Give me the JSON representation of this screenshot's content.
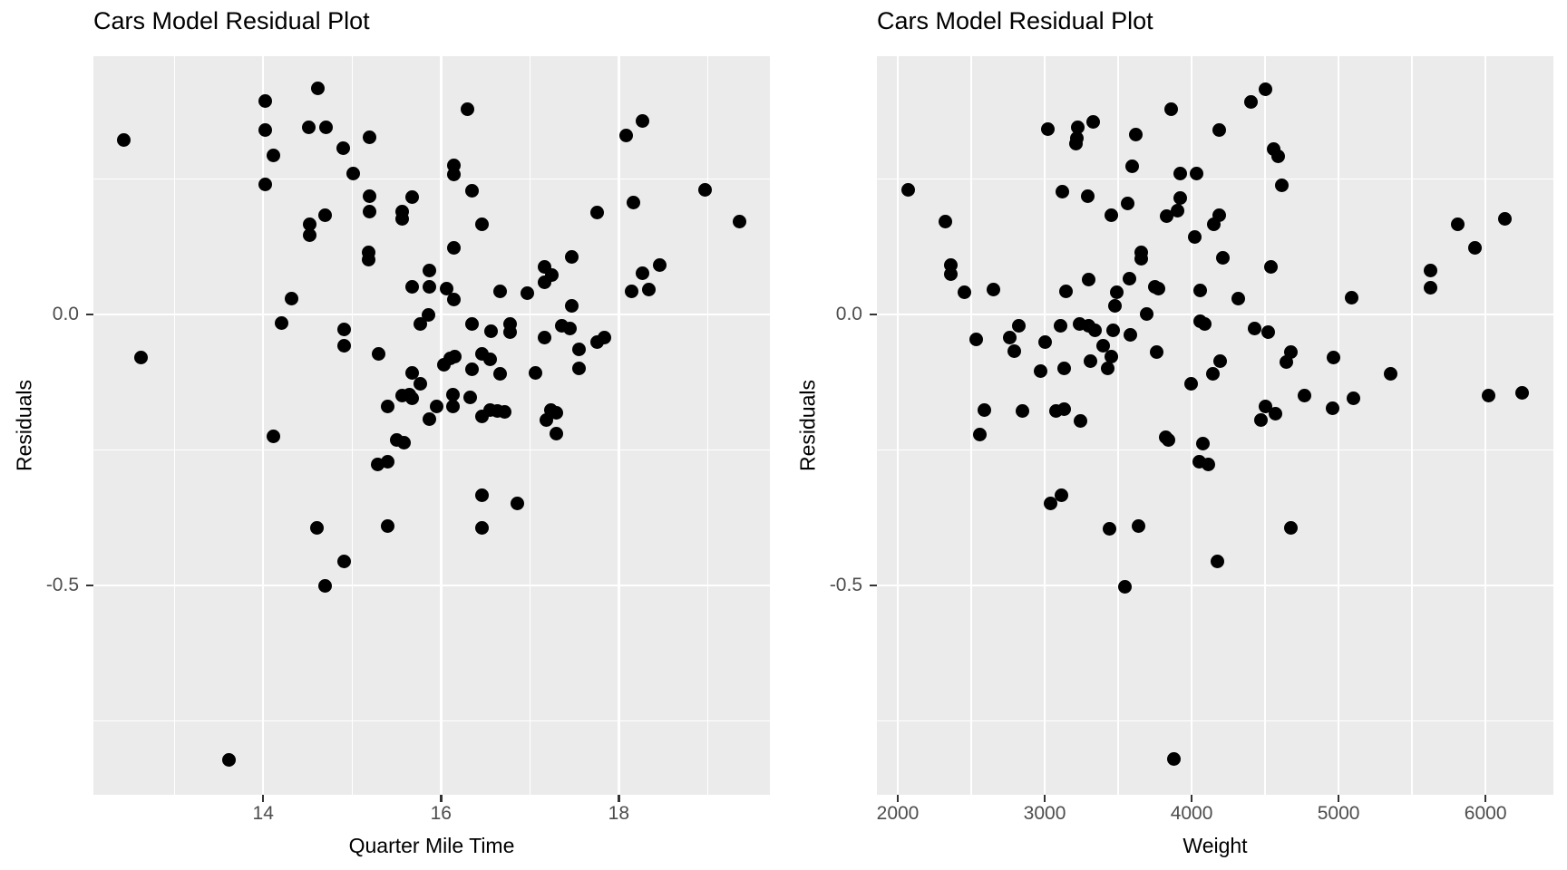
{
  "figure": {
    "background": "#FFFFFF",
    "panel_background": "#EBEBEB",
    "grid_color": "#FFFFFF",
    "point_color": "#000000",
    "tick_mark_color": "#333333",
    "tick_label_color": "#4D4D4D",
    "title_color": "#000000"
  },
  "chart_data": [
    {
      "type": "scatter",
      "title": "Cars Model Residual Plot",
      "xlabel": "Quarter Mile Time",
      "ylabel": "Residuals",
      "xlim": [
        12.09,
        19.7
      ],
      "ylim": [
        -0.886,
        0.477
      ],
      "grid": true,
      "legend": false,
      "x_ticks": {
        "values": [
          14,
          16,
          18
        ],
        "labels": [
          "14",
          "16",
          "18"
        ]
      },
      "y_ticks": {
        "values": [
          0,
          -0.5
        ],
        "labels": [
          "0.0",
          "-0.5"
        ]
      },
      "x_minor": [
        13,
        15,
        17,
        19
      ],
      "y_minor": [
        0.25,
        -0.25,
        -0.75
      ],
      "points": [
        [
          12.43,
          0.323
        ],
        [
          12.63,
          -0.079
        ],
        [
          14.02,
          0.395
        ],
        [
          14.02,
          0.34
        ],
        [
          14.02,
          0.241
        ],
        [
          14.12,
          0.294
        ],
        [
          14.21,
          -0.015
        ],
        [
          14.32,
          0.03
        ],
        [
          14.51,
          0.345
        ],
        [
          14.61,
          0.417
        ],
        [
          14.52,
          0.166
        ],
        [
          14.52,
          0.146
        ],
        [
          14.7,
          0.184
        ],
        [
          14.71,
          0.345
        ],
        [
          14.9,
          0.308
        ],
        [
          14.91,
          -0.028
        ],
        [
          14.91,
          -0.058
        ],
        [
          15.01,
          0.261
        ],
        [
          15.2,
          0.328
        ],
        [
          15.2,
          0.219
        ],
        [
          15.2,
          0.191
        ],
        [
          15.19,
          0.115
        ],
        [
          15.19,
          0.102
        ],
        [
          15.3,
          -0.072
        ],
        [
          15.4,
          -0.17
        ],
        [
          14.12,
          -0.224
        ],
        [
          15.5,
          -0.231
        ],
        [
          15.29,
          -0.276
        ],
        [
          15.4,
          -0.271
        ],
        [
          14.6,
          -0.394
        ],
        [
          15.4,
          -0.39
        ],
        [
          14.91,
          -0.456
        ],
        [
          14.7,
          -0.501
        ],
        [
          13.61,
          -0.821
        ],
        [
          16.3,
          0.379
        ],
        [
          18.27,
          0.357
        ],
        [
          18.08,
          0.331
        ],
        [
          16.14,
          0.276
        ],
        [
          16.14,
          0.259
        ],
        [
          16.35,
          0.229
        ],
        [
          15.68,
          0.217
        ],
        [
          15.56,
          0.19
        ],
        [
          15.56,
          0.176
        ],
        [
          17.76,
          0.188
        ],
        [
          18.16,
          0.207
        ],
        [
          18.97,
          0.231
        ],
        [
          16.46,
          0.166
        ],
        [
          16.14,
          0.123
        ],
        [
          17.47,
          0.107
        ],
        [
          17.16,
          0.089
        ],
        [
          17.25,
          0.073
        ],
        [
          17.16,
          0.06
        ],
        [
          15.87,
          0.081
        ],
        [
          18.46,
          0.092
        ],
        [
          18.27,
          0.077
        ],
        [
          15.68,
          0.052
        ],
        [
          15.87,
          0.052
        ],
        [
          16.06,
          0.048
        ],
        [
          16.67,
          0.043
        ],
        [
          16.97,
          0.04
        ],
        [
          18.14,
          0.043
        ],
        [
          18.34,
          0.047
        ],
        [
          16.14,
          0.028
        ],
        [
          17.47,
          0.017
        ],
        [
          15.86,
          0.0
        ],
        [
          15.77,
          -0.018
        ],
        [
          16.35,
          -0.018
        ],
        [
          16.56,
          -0.03
        ],
        [
          16.78,
          -0.017
        ],
        [
          16.78,
          -0.032
        ],
        [
          17.36,
          -0.02
        ],
        [
          17.45,
          -0.025
        ],
        [
          17.16,
          -0.043
        ],
        [
          17.84,
          -0.042
        ],
        [
          17.76,
          -0.05
        ],
        [
          17.55,
          -0.064
        ],
        [
          16.1,
          -0.08
        ],
        [
          16.03,
          -0.092
        ],
        [
          16.16,
          -0.077
        ],
        [
          16.46,
          -0.072
        ],
        [
          16.55,
          -0.083
        ],
        [
          16.35,
          -0.1
        ],
        [
          16.67,
          -0.11
        ],
        [
          17.06,
          -0.107
        ],
        [
          17.55,
          -0.099
        ],
        [
          15.68,
          -0.107
        ],
        [
          15.77,
          -0.127
        ],
        [
          15.64,
          -0.147
        ],
        [
          15.56,
          -0.15
        ],
        [
          15.95,
          -0.169
        ],
        [
          16.13,
          -0.147
        ],
        [
          16.13,
          -0.17
        ],
        [
          16.33,
          -0.153
        ],
        [
          16.55,
          -0.176
        ],
        [
          15.68,
          -0.154
        ],
        [
          15.87,
          -0.192
        ],
        [
          16.46,
          -0.187
        ],
        [
          16.63,
          -0.177
        ],
        [
          16.72,
          -0.179
        ],
        [
          17.19,
          -0.194
        ],
        [
          17.3,
          -0.181
        ],
        [
          17.3,
          -0.219
        ],
        [
          17.24,
          -0.176
        ],
        [
          15.58,
          -0.236
        ],
        [
          16.46,
          -0.334
        ],
        [
          16.86,
          -0.349
        ],
        [
          16.46,
          -0.393
        ],
        [
          19.36,
          0.171
        ]
      ]
    },
    {
      "type": "scatter",
      "title": "Cars Model Residual Plot",
      "xlabel": "Weight",
      "ylabel": "Residuals",
      "xlim": [
        1858,
        6462
      ],
      "ylim": [
        -0.886,
        0.477
      ],
      "grid": true,
      "legend": false,
      "x_ticks": {
        "values": [
          2000,
          3000,
          4000,
          5000,
          6000
        ],
        "labels": [
          "2000",
          "3000",
          "4000",
          "5000",
          "6000"
        ]
      },
      "y_ticks": {
        "values": [
          0,
          -0.5
        ],
        "labels": [
          "0.0",
          "-0.5"
        ]
      },
      "x_minor": [
        2500,
        3500,
        4500,
        5500
      ],
      "y_minor": [
        0.25,
        -0.25,
        -0.75
      ],
      "points": [
        [
          2068,
          0.231
        ],
        [
          3858,
          0.379
        ],
        [
          3019,
          0.343
        ],
        [
          3222,
          0.345
        ],
        [
          3216,
          0.326
        ],
        [
          3210,
          0.316
        ],
        [
          3333,
          0.356
        ],
        [
          3623,
          0.333
        ],
        [
          3593,
          0.274
        ],
        [
          3920,
          0.261
        ],
        [
          2327,
          0.171
        ],
        [
          3123,
          0.227
        ],
        [
          3290,
          0.219
        ],
        [
          3562,
          0.206
        ],
        [
          3451,
          0.184
        ],
        [
          3920,
          0.216
        ],
        [
          3901,
          0.192
        ],
        [
          3827,
          0.181
        ],
        [
          2364,
          0.092
        ],
        [
          2364,
          0.075
        ],
        [
          3654,
          0.115
        ],
        [
          3654,
          0.104
        ],
        [
          2451,
          0.042
        ],
        [
          2648,
          0.047
        ],
        [
          3142,
          0.043
        ],
        [
          3302,
          0.064
        ],
        [
          3574,
          0.067
        ],
        [
          3747,
          0.052
        ],
        [
          3772,
          0.048
        ],
        [
          3488,
          0.042
        ],
        [
          3481,
          0.017
        ],
        [
          3691,
          0.002
        ],
        [
          3105,
          -0.02
        ],
        [
          3235,
          -0.017
        ],
        [
          3302,
          -0.02
        ],
        [
          3340,
          -0.029
        ],
        [
          3463,
          -0.029
        ],
        [
          3580,
          -0.038
        ],
        [
          2821,
          -0.02
        ],
        [
          2765,
          -0.043
        ],
        [
          2531,
          -0.046
        ],
        [
          2796,
          -0.068
        ],
        [
          3000,
          -0.05
        ],
        [
          3395,
          -0.057
        ],
        [
          3451,
          -0.077
        ],
        [
          3309,
          -0.086
        ],
        [
          3426,
          -0.099
        ],
        [
          2975,
          -0.104
        ],
        [
          3130,
          -0.099
        ],
        [
          3765,
          -0.069
        ],
        [
          3994,
          -0.127
        ],
        [
          2590,
          -0.176
        ],
        [
          2846,
          -0.178
        ],
        [
          3074,
          -0.177
        ],
        [
          3130,
          -0.175
        ],
        [
          4500,
          0.416
        ],
        [
          4401,
          0.393
        ],
        [
          4185,
          0.341
        ],
        [
          4556,
          0.306
        ],
        [
          4586,
          0.293
        ],
        [
          4031,
          0.261
        ],
        [
          4611,
          0.239
        ],
        [
          4185,
          0.184
        ],
        [
          4148,
          0.166
        ],
        [
          4019,
          0.144
        ],
        [
          5808,
          0.166
        ],
        [
          6130,
          0.177
        ],
        [
          5931,
          0.124
        ],
        [
          4210,
          0.105
        ],
        [
          4537,
          0.089
        ],
        [
          5623,
          0.082
        ],
        [
          5623,
          0.05
        ],
        [
          4056,
          0.045
        ],
        [
          4315,
          0.03
        ],
        [
          5086,
          0.032
        ],
        [
          4056,
          -0.013
        ],
        [
          4087,
          -0.017
        ],
        [
          4426,
          -0.025
        ],
        [
          4519,
          -0.033
        ],
        [
          4673,
          -0.069
        ],
        [
          4642,
          -0.087
        ],
        [
          4963,
          -0.079
        ],
        [
          4191,
          -0.086
        ],
        [
          4142,
          -0.109
        ],
        [
          5352,
          -0.109
        ],
        [
          4765,
          -0.149
        ],
        [
          5099,
          -0.154
        ],
        [
          6020,
          -0.149
        ],
        [
          4500,
          -0.169
        ],
        [
          4568,
          -0.183
        ],
        [
          4957,
          -0.172
        ],
        [
          3241,
          -0.196
        ],
        [
          2556,
          -0.221
        ],
        [
          3821,
          -0.226
        ],
        [
          3840,
          -0.232
        ],
        [
          3111,
          -0.334
        ],
        [
          3037,
          -0.349
        ],
        [
          3444,
          -0.395
        ],
        [
          3636,
          -0.39
        ],
        [
          3543,
          -0.502
        ],
        [
          3877,
          -0.82
        ],
        [
          4469,
          -0.194
        ],
        [
          4074,
          -0.238
        ],
        [
          4049,
          -0.271
        ],
        [
          4111,
          -0.276
        ],
        [
          4673,
          -0.393
        ],
        [
          4178,
          -0.456
        ],
        [
          6250,
          -0.145
        ]
      ]
    }
  ]
}
